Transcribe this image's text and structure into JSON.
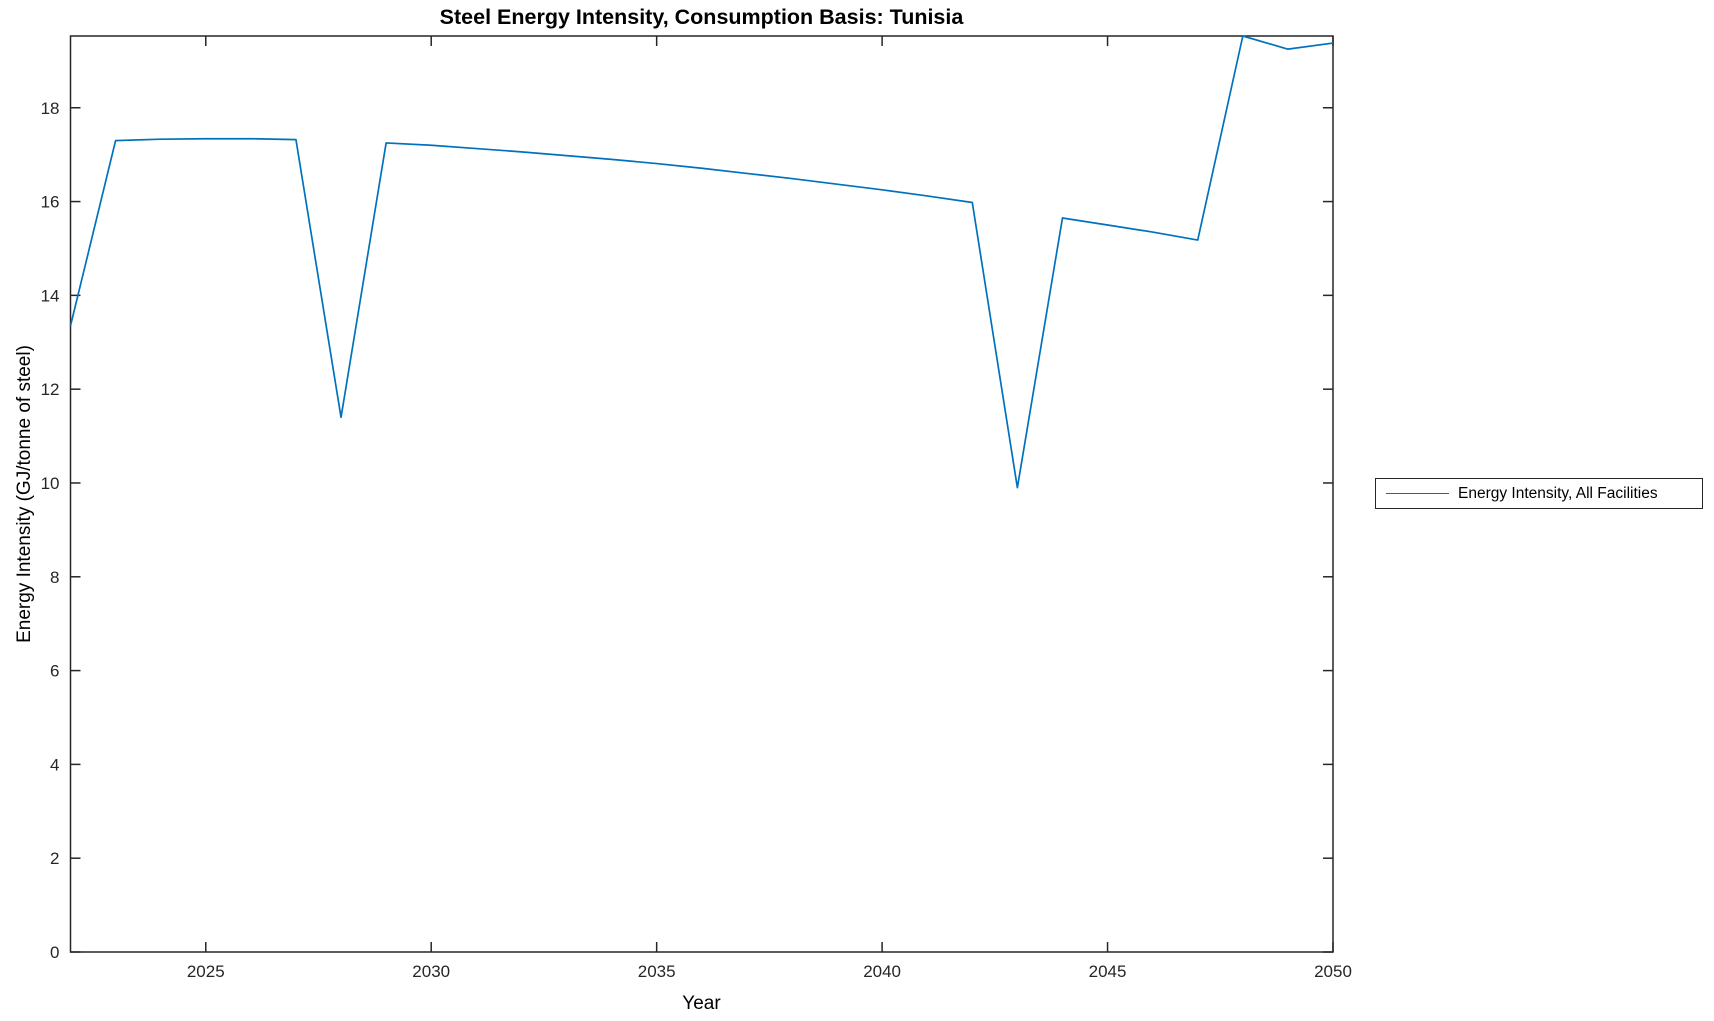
{
  "chart_data": {
    "type": "line",
    "title": "Steel Energy Intensity, Consumption Basis: Tunisia",
    "xlabel": "Year",
    "ylabel": "Energy Intensity (GJ/tonne of steel)",
    "x": [
      2022,
      2023,
      2024,
      2025,
      2026,
      2027,
      2028,
      2029,
      2030,
      2031,
      2032,
      2033,
      2034,
      2035,
      2036,
      2037,
      2038,
      2039,
      2040,
      2041,
      2042,
      2043,
      2044,
      2045,
      2046,
      2047,
      2048,
      2049,
      2050
    ],
    "series": [
      {
        "name": "Energy Intensity, All Facilities",
        "color": "#0072BD",
        "values": [
          13.35,
          17.3,
          17.33,
          17.34,
          17.34,
          17.32,
          11.4,
          17.25,
          17.2,
          17.13,
          17.06,
          16.98,
          16.9,
          16.81,
          16.71,
          16.6,
          16.49,
          16.37,
          16.25,
          16.12,
          15.98,
          9.9,
          15.65,
          15.5,
          15.35,
          15.18,
          19.53,
          19.25,
          19.38
        ]
      }
    ],
    "xlim": [
      2022,
      2050
    ],
    "ylim": [
      0,
      19.53
    ],
    "xticks": [
      2025,
      2030,
      2035,
      2040,
      2045,
      2050
    ],
    "yticks": [
      0,
      2,
      4,
      6,
      8,
      10,
      12,
      14,
      16,
      18
    ],
    "grid": false,
    "legend": {
      "position": "right-outside",
      "entries": [
        "Energy Intensity, All Facilities"
      ]
    },
    "colors": {
      "line": "#0072BD",
      "axis": "#262626",
      "text": "#000000",
      "background": "#ffffff"
    }
  }
}
